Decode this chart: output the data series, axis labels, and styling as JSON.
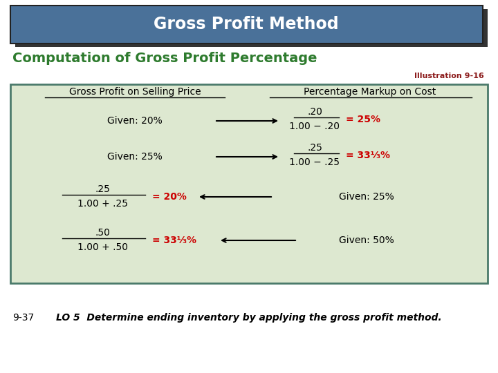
{
  "title": "Gross Profit Method",
  "subtitle": "Computation of Gross Profit Percentage",
  "illustration": "Illustration 9-16",
  "footer_left": "9-37",
  "footer_right": "LO 5  Determine ending inventory by applying the gross profit method.",
  "title_bg_color": "#4A7199",
  "title_text_color": "#FFFFFF",
  "subtitle_color": "#2E7B2E",
  "illustration_color": "#8B1A1A",
  "table_bg_color": "#DDE8D0",
  "table_border_color": "#4A7A6A",
  "header_text_color": "#000000",
  "body_text_color": "#000000",
  "red_text_color": "#CC0000",
  "bg_color": "#FFFFFF",
  "shadow_color": "#333333"
}
